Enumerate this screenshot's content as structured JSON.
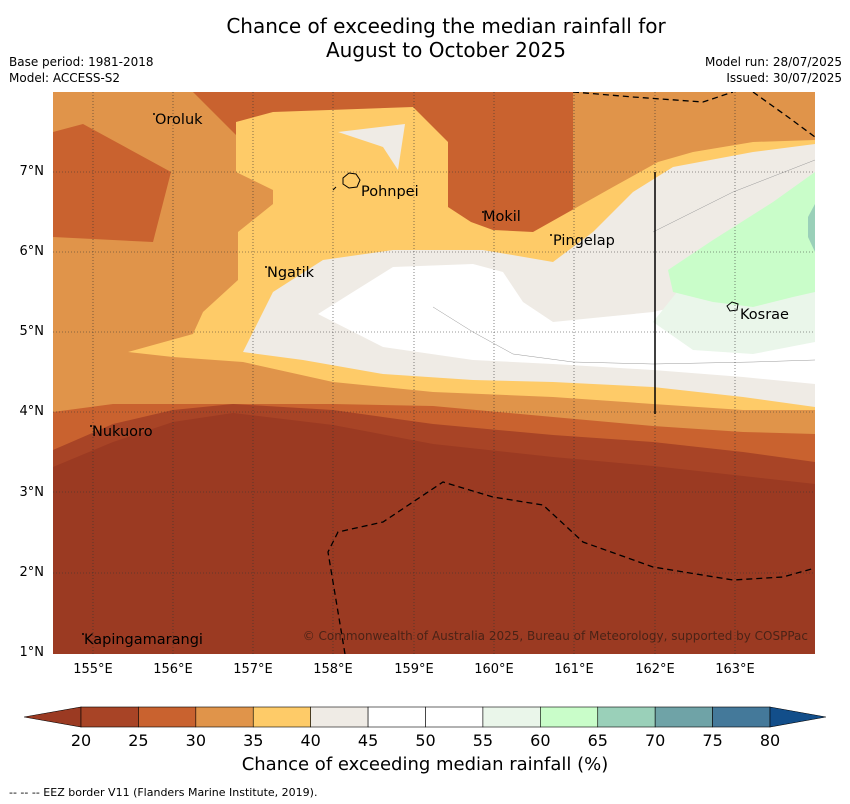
{
  "title": {
    "line1": "Chance of exceeding the median rainfall for",
    "line2": "August to October 2025"
  },
  "meta": {
    "base_period": "Base period: 1981-2018",
    "model": "Model: ACCESS-S2",
    "model_run": "Model run: 28/07/2025",
    "issued": "Issued: 30/07/2025"
  },
  "axes": {
    "lat_labels": [
      "7°N",
      "6°N",
      "5°N",
      "4°N",
      "3°N",
      "2°N",
      "1°N"
    ],
    "lon_labels": [
      "155°E",
      "156°E",
      "157°E",
      "158°E",
      "159°E",
      "160°E",
      "161°E",
      "162°E",
      "163°E"
    ]
  },
  "places": [
    {
      "name": "Oroluk"
    },
    {
      "name": "Pohnpei"
    },
    {
      "name": "Mokil"
    },
    {
      "name": "Pingelap"
    },
    {
      "name": "Ngatik"
    },
    {
      "name": "Kosrae"
    },
    {
      "name": "Nukuoro"
    },
    {
      "name": "Kapingamarangi"
    }
  ],
  "copyright": "© Commonwealth of Australia 2025, Bureau of Meteorology, supported by COSPPac",
  "colorbar": {
    "ticks": [
      "20",
      "25",
      "30",
      "35",
      "40",
      "45",
      "50",
      "55",
      "60",
      "65",
      "70",
      "75",
      "80"
    ],
    "colors": [
      "#a84426",
      "#c9622f",
      "#e0944a",
      "#fecb68",
      "#efebe5",
      "#ffffff",
      "#ffffff",
      "#eaf6ea",
      "#c9fdc9",
      "#9ad0b9",
      "#6fa3a7",
      "#44799a"
    ],
    "under_color": "#9b3a22",
    "over_color": "#124e8a",
    "label": "Chance of exceeding median rainfall (%)"
  },
  "footnote": "--  --  -- EEZ border V11 (Flanders Marine Institute, 2019)."
}
